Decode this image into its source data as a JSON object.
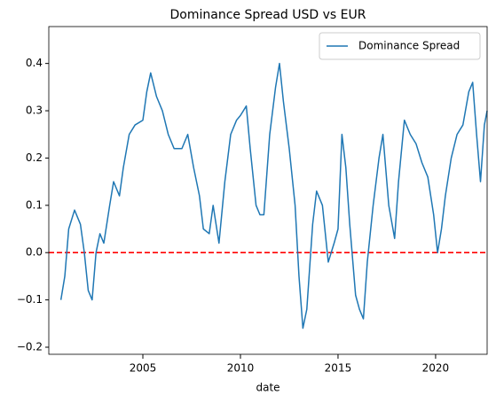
{
  "chart_data": {
    "type": "line",
    "title": "Dominance Spread USD vs EUR",
    "xlabel": "date",
    "x": [
      2000.8,
      2001.0,
      2001.2,
      2001.5,
      2001.8,
      2002.0,
      2002.2,
      2002.4,
      2002.6,
      2002.8,
      2003.0,
      2003.3,
      2003.5,
      2003.8,
      2004.0,
      2004.3,
      2004.6,
      2005.0,
      2005.2,
      2005.4,
      2005.7,
      2006.0,
      2006.3,
      2006.6,
      2007.0,
      2007.3,
      2007.6,
      2007.9,
      2008.1,
      2008.4,
      2008.6,
      2008.9,
      2009.2,
      2009.5,
      2009.8,
      2010.0,
      2010.3,
      2010.5,
      2010.8,
      2011.0,
      2011.2,
      2011.5,
      2011.8,
      2012.0,
      2012.2,
      2012.5,
      2012.8,
      2013.0,
      2013.2,
      2013.4,
      2013.7,
      2013.9,
      2014.2,
      2014.5,
      2014.8,
      2015.0,
      2015.2,
      2015.4,
      2015.6,
      2015.9,
      2016.1,
      2016.3,
      2016.5,
      2016.8,
      2017.1,
      2017.3,
      2017.6,
      2017.9,
      2018.1,
      2018.4,
      2018.7,
      2019.0,
      2019.3,
      2019.6,
      2019.9,
      2020.1,
      2020.3,
      2020.5,
      2020.8,
      2021.1,
      2021.4,
      2021.7,
      2021.9,
      2022.1,
      2022.3,
      2022.5,
      2022.64
    ],
    "series": [
      {
        "name": "Dominance Spread",
        "color": "#1f77b4",
        "values": [
          -0.1,
          -0.05,
          0.05,
          0.09,
          0.06,
          0.0,
          -0.08,
          -0.1,
          0.0,
          0.04,
          0.02,
          0.1,
          0.15,
          0.12,
          0.18,
          0.25,
          0.27,
          0.28,
          0.34,
          0.38,
          0.33,
          0.3,
          0.25,
          0.22,
          0.22,
          0.25,
          0.18,
          0.12,
          0.05,
          0.04,
          0.1,
          0.02,
          0.15,
          0.25,
          0.28,
          0.29,
          0.31,
          0.22,
          0.1,
          0.08,
          0.08,
          0.25,
          0.35,
          0.4,
          0.32,
          0.22,
          0.1,
          -0.05,
          -0.16,
          -0.12,
          0.06,
          0.13,
          0.1,
          -0.02,
          0.02,
          0.05,
          0.25,
          0.18,
          0.06,
          -0.09,
          -0.12,
          -0.14,
          -0.02,
          0.1,
          0.2,
          0.25,
          0.1,
          0.03,
          0.15,
          0.28,
          0.25,
          0.23,
          0.19,
          0.16,
          0.08,
          0.0,
          0.05,
          0.12,
          0.2,
          0.25,
          0.27,
          0.34,
          0.36,
          0.25,
          0.15,
          0.27,
          0.3
        ]
      }
    ],
    "xlim": [
      2000.18,
      2022.64
    ],
    "xticks": [
      2005,
      2010,
      2015,
      2020
    ],
    "ylim": [
      -0.215,
      0.478
    ],
    "yticks": [
      {
        "value": -0.2,
        "label": "−0.2"
      },
      {
        "value": -0.1,
        "label": "−0.1"
      },
      {
        "value": 0,
        "label": "0.0"
      },
      0.1,
      0.2,
      0.3,
      0.4
    ],
    "hline": {
      "value": 0,
      "color": "#ff0000"
    },
    "legend": "upper right"
  }
}
